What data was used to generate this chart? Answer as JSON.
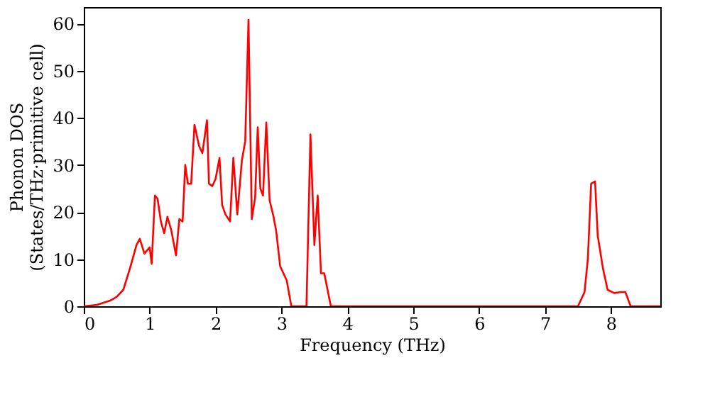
{
  "chart_data": {
    "type": "line",
    "xlabel": "Frequency (THz)",
    "ylabel": "Phonon DOS\n(States/THz·primitive cell)",
    "x": [
      0,
      0.2,
      0.4,
      0.5,
      0.6,
      0.7,
      0.8,
      0.85,
      0.92,
      1.0,
      1.03,
      1.08,
      1.12,
      1.17,
      1.22,
      1.27,
      1.33,
      1.4,
      1.45,
      1.5,
      1.54,
      1.58,
      1.63,
      1.68,
      1.75,
      1.8,
      1.87,
      1.9,
      1.95,
      2.0,
      2.06,
      2.1,
      2.15,
      2.22,
      2.27,
      2.33,
      2.4,
      2.45,
      2.5,
      2.55,
      2.6,
      2.64,
      2.68,
      2.72,
      2.77,
      2.82,
      2.88,
      2.92,
      2.98,
      3.08,
      3.15,
      3.3,
      3.38,
      3.44,
      3.5,
      3.55,
      3.6,
      3.65,
      3.75,
      4.0,
      7.5,
      7.6,
      7.65,
      7.7,
      7.76,
      7.8,
      7.88,
      7.95,
      8.05,
      8.15,
      8.22,
      8.3,
      8.75
    ],
    "series": [
      {
        "color": "#ff0000",
        "values": [
          0,
          0.3,
          1.2,
          2,
          3.5,
          8,
          13,
          14.3,
          11.2,
          12.5,
          9,
          23.5,
          22.8,
          18,
          15.5,
          19,
          16,
          10.8,
          18.5,
          18,
          30,
          26,
          26,
          38.5,
          34,
          32.5,
          39.5,
          26,
          25.5,
          27,
          31.5,
          21.5,
          19.5,
          18,
          31.5,
          19.5,
          31,
          35,
          60.8,
          18.5,
          23,
          38,
          25,
          23.5,
          39,
          22.5,
          19,
          16,
          8.5,
          5.5,
          0,
          0,
          0,
          36.5,
          13,
          23.5,
          7,
          7,
          0,
          0,
          0,
          3,
          10,
          26,
          26.5,
          15,
          8,
          3.5,
          2.8,
          3,
          3,
          0,
          0
        ]
      }
    ],
    "xlim": [
      0,
      8.75
    ],
    "ylim": [
      0,
      63.5
    ],
    "xticks": [
      0,
      1,
      2,
      3,
      4,
      5,
      6,
      7,
      8
    ],
    "yticks": [
      0,
      10,
      20,
      30,
      40,
      50,
      60
    ],
    "grid": false,
    "line_style": "solid"
  }
}
